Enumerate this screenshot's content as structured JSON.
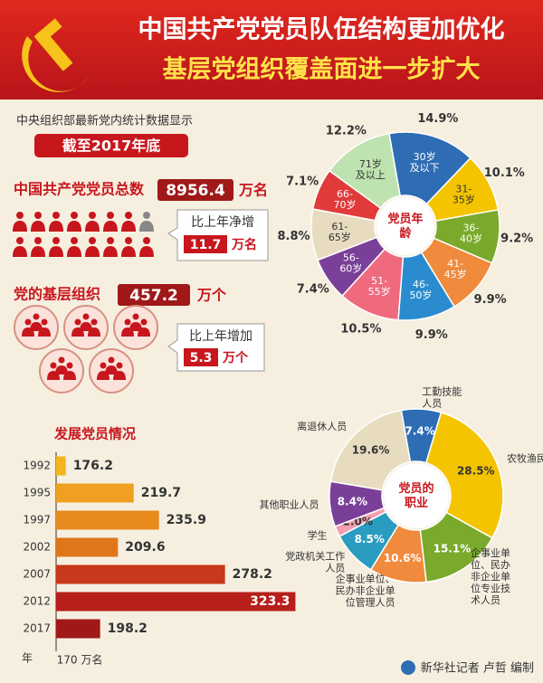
{
  "header": {
    "title1": "中国共产党党员队伍结构更加优化",
    "title2": "基层党组织覆盖面进一步扩大"
  },
  "intro": "中央组织部最新党内统计数据显示",
  "as_of": "截至2017年底",
  "members": {
    "label": "中国共产党党员总数",
    "value": "8956.4",
    "unit": "万名",
    "change_label": "比上年净增",
    "change": "11.7",
    "change_unit": "万名"
  },
  "orgs": {
    "label": "党的基层组织",
    "value": "457.2",
    "unit": "万个",
    "change_label": "比上年增加",
    "change": "5.3",
    "change_unit": "万个"
  },
  "chart_data": [
    {
      "type": "pie",
      "title": "党员年龄",
      "categories": [
        "30岁及以下",
        "31-35岁",
        "36-40岁",
        "41-45岁",
        "46-50岁",
        "51-55岁",
        "56-60岁",
        "61-65岁",
        "66-70岁",
        "71岁及以上"
      ],
      "values": [
        14.9,
        10.1,
        9.2,
        9.9,
        9.9,
        10.5,
        7.4,
        8.8,
        7.1,
        12.2
      ],
      "value_labels": [
        "14.9%",
        "10.1%",
        "9.2%",
        "9.9%",
        "9.9%",
        "10.5%",
        "7.4%",
        "8.8%",
        "7.1%",
        "12.2%"
      ],
      "colors": [
        "#2e6db4",
        "#f5c400",
        "#7aa92b",
        "#f08a3c",
        "#2a8ccf",
        "#f06a7e",
        "#7a3f98",
        "#e8dcc0",
        "#e03a3a",
        "#bfe3b0"
      ]
    },
    {
      "type": "pie",
      "title": "党员的职业",
      "categories": [
        "工勤技能人员",
        "农牧渔民",
        "企事业单位、民办非企业单位专业技术人员",
        "企事业单位、民办非企业单位管理人员",
        "党政机关工作人员",
        "学生",
        "其他职业人员",
        "离退休人员"
      ],
      "values": [
        7.4,
        28.5,
        15.1,
        10.6,
        8.5,
        2.0,
        8.4,
        19.6
      ],
      "value_labels": [
        "7.4%",
        "28.5%",
        "15.1%",
        "10.6%",
        "8.5%",
        "2.0%",
        "8.4%",
        "19.6%"
      ],
      "colors": [
        "#2e6db4",
        "#f5c400",
        "#7aa92b",
        "#f08a3c",
        "#2a9cc0",
        "#f4a0b0",
        "#7a3f98",
        "#e8dcc0"
      ]
    },
    {
      "type": "bar",
      "title": "发展党员情况",
      "ylabel": "年",
      "categories": [
        "1992",
        "1995",
        "1997",
        "2002",
        "2007",
        "2012",
        "2017"
      ],
      "values": [
        176.2,
        219.7,
        235.9,
        209.6,
        278.2,
        323.3,
        198.2
      ],
      "colors": [
        "#f5b51e",
        "#f0a020",
        "#e88a1c",
        "#e0761a",
        "#c8381a",
        "#b81e1a",
        "#a01818"
      ],
      "xlim": [
        170,
        330
      ],
      "xticks": [
        {
          "value": 170,
          "label": "170 万名"
        }
      ]
    }
  ],
  "footer": "新华社记者 卢哲 编制"
}
